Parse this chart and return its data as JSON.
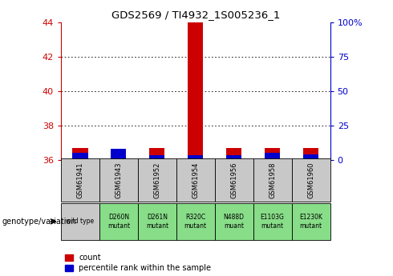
{
  "title": "GDS2569 / TI4932_1S005236_1",
  "samples": [
    "GSM61941",
    "GSM61943",
    "GSM61952",
    "GSM61954",
    "GSM61956",
    "GSM61958",
    "GSM61960"
  ],
  "genotypes": [
    "wild type",
    "D260N\nmutant",
    "D261N\nmutant",
    "R320C\nmutant",
    "N488D\nmuant",
    "E1103G\nmutant",
    "E1230K\nmutant"
  ],
  "count_values": [
    36.7,
    36.0,
    36.7,
    44.0,
    36.7,
    36.7,
    36.7
  ],
  "percentile_values": [
    5.0,
    8.0,
    3.5,
    3.5,
    3.5,
    5.0,
    4.0
  ],
  "ylim_left": [
    36,
    44
  ],
  "ylim_right": [
    0,
    100
  ],
  "yticks_left": [
    36,
    38,
    40,
    42,
    44
  ],
  "yticks_right": [
    0,
    25,
    50,
    75,
    100
  ],
  "ytick_labels_right": [
    "0",
    "25",
    "50",
    "75",
    "100%"
  ],
  "count_color": "#cc0000",
  "percentile_color": "#0000cc",
  "background_color": "#ffffff",
  "sample_bg_color": "#c8c8c8",
  "genotype_bg_color": "#88dd88",
  "wild_type_bg_color": "#c8c8c8",
  "legend_label_count": "count",
  "legend_label_percentile": "percentile rank within the sample",
  "genotype_label": "genotype/variation"
}
